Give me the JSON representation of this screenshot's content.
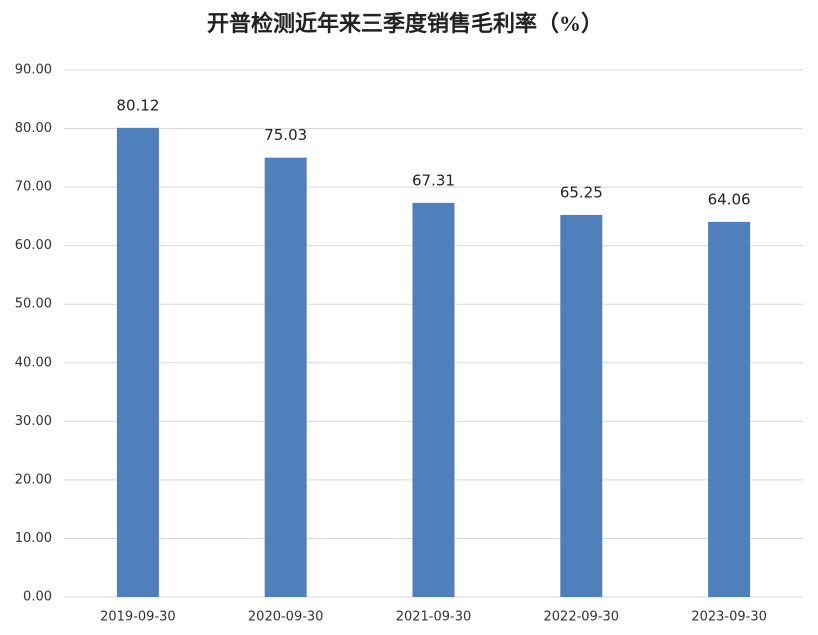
{
  "chart_data": {
    "type": "bar",
    "title": "开普检测近年来三季度销售毛利率（%）",
    "categories": [
      "2019-09-30",
      "2020-09-30",
      "2021-09-30",
      "2022-09-30",
      "2023-09-30"
    ],
    "values": [
      80.12,
      75.03,
      67.31,
      65.25,
      64.06
    ],
    "color": "#4f7fbc",
    "ylim": [
      0,
      90
    ],
    "yticks": [
      {
        "value": 0,
        "label": "0.00"
      },
      {
        "value": 10,
        "label": "10.00"
      },
      {
        "value": 20,
        "label": "20.00"
      },
      {
        "value": 30,
        "label": "30.00"
      },
      {
        "value": 40,
        "label": "40.00"
      },
      {
        "value": 50,
        "label": "50.00"
      },
      {
        "value": 60,
        "label": "60.00"
      },
      {
        "value": 70,
        "label": "70.00"
      },
      {
        "value": 80,
        "label": "80.00"
      },
      {
        "value": 90,
        "label": "90.00"
      }
    ],
    "grid": true
  }
}
